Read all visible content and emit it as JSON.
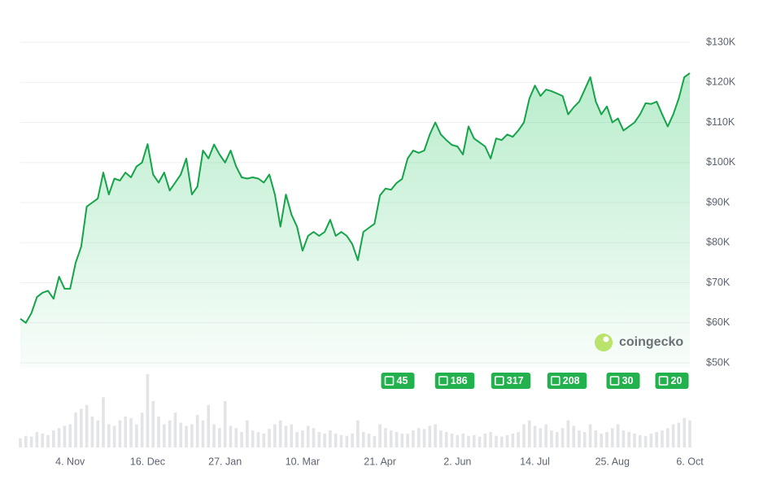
{
  "chart_data": {
    "type": "area",
    "categories": [
      null,
      null,
      null,
      null,
      null,
      null,
      null,
      null,
      null,
      "4. Nov",
      null,
      null,
      null,
      null,
      null,
      null,
      null,
      null,
      null,
      null,
      null,
      null,
      null,
      "16. Dec",
      null,
      null,
      null,
      null,
      null,
      null,
      null,
      null,
      null,
      null,
      null,
      null,
      null,
      "27. Jan",
      null,
      null,
      null,
      null,
      null,
      null,
      null,
      null,
      null,
      null,
      null,
      null,
      null,
      "10. Mar",
      null,
      null,
      null,
      null,
      null,
      null,
      null,
      null,
      null,
      null,
      null,
      null,
      null,
      "21. Apr",
      null,
      null,
      null,
      null,
      null,
      null,
      null,
      null,
      null,
      null,
      null,
      null,
      null,
      "2. Jun",
      null,
      null,
      null,
      null,
      null,
      null,
      null,
      null,
      null,
      null,
      null,
      null,
      null,
      "14. Jul",
      null,
      null,
      null,
      null,
      null,
      null,
      null,
      null,
      null,
      null,
      null,
      null,
      null,
      "25. Aug",
      null,
      null,
      null,
      null,
      null,
      null,
      null,
      null,
      null,
      null,
      null,
      null,
      null,
      "6. Oct"
    ],
    "values": [
      61000,
      60000,
      62400,
      66400,
      67500,
      68000,
      66000,
      71500,
      68500,
      68500,
      75000,
      79000,
      89000,
      90000,
      91000,
      97500,
      92000,
      96000,
      95500,
      97500,
      96300,
      99000,
      100000,
      104600,
      97000,
      95000,
      97500,
      93000,
      95000,
      97000,
      101000,
      92000,
      94000,
      103000,
      101000,
      104500,
      102000,
      100000,
      103000,
      99000,
      96300,
      96000,
      96300,
      96000,
      95000,
      97000,
      92000,
      84000,
      92000,
      87000,
      84000,
      78000,
      81700,
      82700,
      81700,
      82700,
      85700,
      81700,
      82700,
      81700,
      79600,
      75600,
      82700,
      83700,
      84700,
      91800,
      93500,
      93200,
      94900,
      95900,
      101000,
      103000,
      102400,
      103000,
      107000,
      110000,
      107000,
      105600,
      104400,
      104000,
      102000,
      109000,
      106000,
      105000,
      104000,
      101000,
      106000,
      105600,
      107000,
      106400,
      108000,
      110000,
      116000,
      119200,
      116600,
      118200,
      117800,
      117200,
      116600,
      112000,
      113800,
      115200,
      118200,
      121300,
      115200,
      112000,
      114000,
      110000,
      111000,
      108000,
      109000,
      110000,
      112000,
      114800,
      114600,
      115200,
      112000,
      109000,
      112000,
      116000,
      121300,
      122300
    ],
    "color": "#16a34a",
    "ylim": [
      50000,
      130000
    ],
    "yticks": [
      {
        "value": 50000,
        "label": "$50K"
      },
      {
        "value": 60000,
        "label": "$60K"
      },
      {
        "value": 70000,
        "label": "$70K"
      },
      {
        "value": 80000,
        "label": "$80K"
      },
      {
        "value": 90000,
        "label": "$90K"
      },
      {
        "value": 100000,
        "label": "$100K"
      },
      {
        "value": 110000,
        "label": "$110K"
      },
      {
        "value": 120000,
        "label": "$120K"
      },
      {
        "value": 130000,
        "label": "$130K"
      }
    ],
    "grid": true,
    "volume": {
      "values": [
        12,
        15,
        14,
        20,
        18,
        16,
        22,
        25,
        28,
        30,
        45,
        50,
        55,
        40,
        35,
        65,
        30,
        28,
        35,
        40,
        38,
        30,
        45,
        95,
        60,
        40,
        30,
        35,
        45,
        32,
        28,
        30,
        42,
        35,
        55,
        30,
        25,
        60,
        28,
        25,
        20,
        35,
        22,
        20,
        18,
        24,
        30,
        35,
        28,
        30,
        20,
        22,
        28,
        25,
        20,
        18,
        22,
        18,
        16,
        15,
        18,
        35,
        20,
        18,
        15,
        30,
        25,
        22,
        20,
        18,
        18,
        22,
        25,
        24,
        28,
        30,
        22,
        20,
        18,
        16,
        18,
        15,
        16,
        14,
        18,
        20,
        15,
        14,
        16,
        18,
        20,
        30,
        35,
        28,
        25,
        30,
        22,
        20,
        25,
        35,
        28,
        22,
        20,
        30,
        22,
        18,
        20,
        25,
        30,
        22,
        20,
        18,
        16,
        15,
        18,
        20,
        22,
        25,
        30,
        32,
        38,
        35
      ],
      "lim": [
        0,
        100
      ],
      "color": "#e2e4e8"
    },
    "news_counts": [
      45,
      186,
      317,
      208,
      30,
      20
    ],
    "news_color": "#22b14c",
    "watermark": "coingecko"
  }
}
